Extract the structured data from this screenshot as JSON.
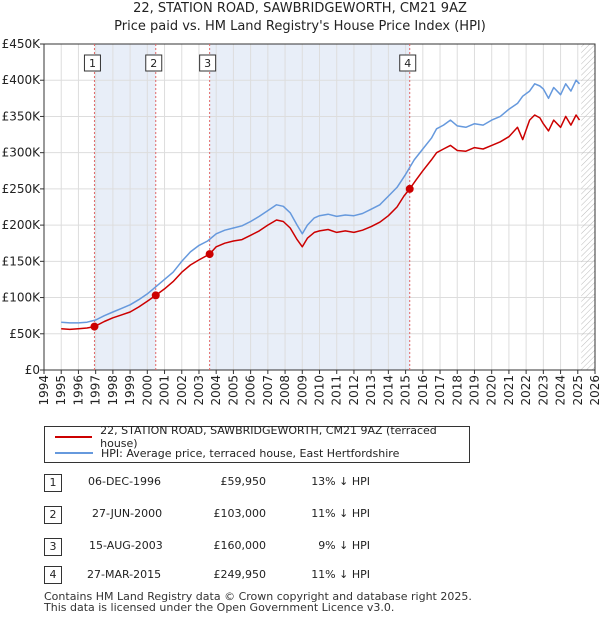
{
  "title_line1": "22, STATION ROAD, SAWBRIDGEWORTH, CM21 9AZ",
  "title_line2": "Price paid vs. HM Land Registry's House Price Index (HPI)",
  "colors": {
    "property": "#cc0000",
    "hpi": "#6699dd",
    "shade": "#e8eef8",
    "grid": "#dddddd"
  },
  "chart_data": {
    "type": "line",
    "title": "22, STATION ROAD, SAWBRIDGEWORTH, CM21 9AZ — Price paid vs. HM Land Registry's House Price Index (HPI)",
    "xlabel": "",
    "ylabel": "",
    "xlim": [
      1994,
      2026
    ],
    "ylim": [
      0,
      450000
    ],
    "x_ticks": [
      "1994",
      "1995",
      "1996",
      "1997",
      "1998",
      "1999",
      "2000",
      "2001",
      "2002",
      "2003",
      "2004",
      "2005",
      "2006",
      "2007",
      "2008",
      "2009",
      "2010",
      "2011",
      "2012",
      "2013",
      "2014",
      "2015",
      "2016",
      "2017",
      "2018",
      "2019",
      "2020",
      "2021",
      "2022",
      "2023",
      "2024",
      "2025",
      "2026"
    ],
    "y_ticks": [
      {
        "v": 0,
        "label": "£0"
      },
      {
        "v": 50000,
        "label": "£50K"
      },
      {
        "v": 100000,
        "label": "£100K"
      },
      {
        "v": 150000,
        "label": "£150K"
      },
      {
        "v": 200000,
        "label": "£200K"
      },
      {
        "v": 250000,
        "label": "£250K"
      },
      {
        "v": 300000,
        "label": "£300K"
      },
      {
        "v": 350000,
        "label": "£350K"
      },
      {
        "v": 400000,
        "label": "£400K"
      },
      {
        "v": 450000,
        "label": "£450K"
      }
    ],
    "shaded_regions": [
      [
        1996.93,
        2000.49
      ],
      [
        2003.62,
        2015.24
      ]
    ],
    "future_hatch_from": 2025.2,
    "series": [
      {
        "name": "22, STATION ROAD, SAWBRIDGEWORTH, CM21 9AZ (terraced house)",
        "x": [
          1995.0,
          1995.5,
          1996.0,
          1996.5,
          1996.93,
          1997.5,
          1998.0,
          1998.5,
          1999.0,
          1999.5,
          2000.0,
          2000.49,
          2001.0,
          2001.5,
          2002.0,
          2002.5,
          2003.0,
          2003.62,
          2004.0,
          2004.5,
          2005.0,
          2005.5,
          2006.0,
          2006.5,
          2007.0,
          2007.5,
          2007.9,
          2008.3,
          2008.7,
          2009.0,
          2009.3,
          2009.7,
          2010.0,
          2010.5,
          2011.0,
          2011.5,
          2012.0,
          2012.5,
          2013.0,
          2013.5,
          2014.0,
          2014.5,
          2014.9,
          2015.24,
          2015.6,
          2016.0,
          2016.5,
          2016.8,
          2017.2,
          2017.6,
          2018.0,
          2018.5,
          2019.0,
          2019.5,
          2020.0,
          2020.5,
          2021.0,
          2021.5,
          2021.8,
          2022.2,
          2022.5,
          2022.8,
          2023.0,
          2023.3,
          2023.6,
          2024.0,
          2024.3,
          2024.6,
          2024.9,
          2025.1
        ],
        "values": [
          57000,
          56000,
          57000,
          58000,
          59950,
          67000,
          72000,
          76000,
          80000,
          87000,
          95000,
          103000,
          112000,
          122000,
          135000,
          145000,
          152000,
          160000,
          170000,
          175000,
          178000,
          180000,
          186000,
          192000,
          200000,
          207000,
          205000,
          196000,
          180000,
          170000,
          182000,
          190000,
          192000,
          194000,
          190000,
          192000,
          190000,
          193000,
          198000,
          204000,
          213000,
          225000,
          240000,
          249950,
          262000,
          275000,
          290000,
          300000,
          305000,
          310000,
          303000,
          302000,
          307000,
          305000,
          310000,
          315000,
          322000,
          335000,
          318000,
          345000,
          352000,
          348000,
          340000,
          330000,
          345000,
          335000,
          350000,
          338000,
          352000,
          345000
        ]
      },
      {
        "name": "HPI: Average price, terraced house, East Hertfordshire",
        "x": [
          1995.0,
          1995.5,
          1996.0,
          1996.5,
          1997.0,
          1997.5,
          1998.0,
          1998.5,
          1999.0,
          1999.5,
          2000.0,
          2000.5,
          2001.0,
          2001.5,
          2002.0,
          2002.5,
          2003.0,
          2003.5,
          2004.0,
          2004.5,
          2005.0,
          2005.5,
          2006.0,
          2006.5,
          2007.0,
          2007.5,
          2007.9,
          2008.3,
          2008.7,
          2009.0,
          2009.3,
          2009.7,
          2010.0,
          2010.5,
          2011.0,
          2011.5,
          2012.0,
          2012.5,
          2013.0,
          2013.5,
          2014.0,
          2014.5,
          2015.0,
          2015.5,
          2016.0,
          2016.5,
          2016.8,
          2017.2,
          2017.6,
          2018.0,
          2018.5,
          2019.0,
          2019.5,
          2020.0,
          2020.5,
          2021.0,
          2021.5,
          2021.8,
          2022.2,
          2022.5,
          2022.8,
          2023.0,
          2023.3,
          2023.6,
          2024.0,
          2024.3,
          2024.6,
          2024.9,
          2025.1
        ],
        "values": [
          66000,
          65000,
          65000,
          66000,
          69000,
          75000,
          80000,
          85000,
          90000,
          97000,
          105000,
          115000,
          125000,
          135000,
          150000,
          163000,
          172000,
          178000,
          188000,
          193000,
          196000,
          199000,
          205000,
          212000,
          220000,
          228000,
          226000,
          217000,
          200000,
          188000,
          200000,
          210000,
          213000,
          215000,
          212000,
          214000,
          213000,
          216000,
          222000,
          228000,
          240000,
          252000,
          270000,
          290000,
          305000,
          320000,
          333000,
          338000,
          345000,
          337000,
          335000,
          340000,
          338000,
          345000,
          350000,
          360000,
          368000,
          378000,
          385000,
          395000,
          392000,
          388000,
          375000,
          390000,
          380000,
          395000,
          385000,
          400000,
          395000
        ]
      }
    ],
    "transactions": [
      {
        "label": "1",
        "x": 1996.93,
        "y": 59950
      },
      {
        "label": "2",
        "x": 2000.49,
        "y": 103000
      },
      {
        "label": "3",
        "x": 2003.62,
        "y": 160000
      },
      {
        "label": "4",
        "x": 2015.24,
        "y": 249950
      }
    ]
  },
  "legend": {
    "property": "22, STATION ROAD, SAWBRIDGEWORTH, CM21 9AZ (terraced house)",
    "hpi": "HPI: Average price, terraced house, East Hertfordshire"
  },
  "table": [
    {
      "num": "1",
      "date": "06-DEC-1996",
      "price": "£59,950",
      "hpi": "13% ↓ HPI"
    },
    {
      "num": "2",
      "date": "27-JUN-2000",
      "price": "£103,000",
      "hpi": "11% ↓ HPI"
    },
    {
      "num": "3",
      "date": "15-AUG-2003",
      "price": "£160,000",
      "hpi": "9% ↓ HPI"
    },
    {
      "num": "4",
      "date": "27-MAR-2015",
      "price": "£249,950",
      "hpi": "11% ↓ HPI"
    }
  ],
  "footer_line1": "Contains HM Land Registry data © Crown copyright and database right 2025.",
  "footer_line2": "This data is licensed under the Open Government Licence v3.0."
}
